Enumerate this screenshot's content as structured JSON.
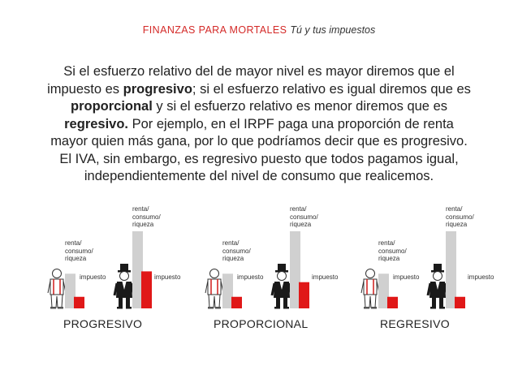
{
  "header": {
    "brand": "FINANZAS PARA MORTALES",
    "subtitle": "Tú y tus impuestos"
  },
  "paragraph": {
    "p1": "Si el esfuerzo relativo del de mayor nivel es mayor diremos que el impuesto es ",
    "b1": "progresivo",
    "p2": "; si el esfuerzo relativo es igual diremos que es ",
    "b2": "proporcional",
    "p3": " y si el esfuerzo relativo es menor diremos que es ",
    "b3": "regresivo.",
    "p4": " Por ejemplo, en el IRPF paga una proporción de renta mayor quien más gana, por lo que podríamos decir que es progresivo. El IVA, sin embargo, es regresivo puesto que todos pagamos igual, independientemente del nivel de consumo que realicemos."
  },
  "labels": {
    "base": "renta/\nconsumo/\nriqueza",
    "tax": "impuesto"
  },
  "colors": {
    "accent": "#d42a28",
    "bar_gray": "#d0d0d0",
    "bar_red": "#e01818"
  },
  "panels": [
    {
      "caption": "PROGRESIVO",
      "low_base": 0.45,
      "low_tax": 0.15,
      "high_base": 1.0,
      "high_tax": 0.48
    },
    {
      "caption": "PROPORCIONAL",
      "low_base": 0.45,
      "low_tax": 0.15,
      "high_base": 1.0,
      "high_tax": 0.34
    },
    {
      "caption": "REGRESIVO",
      "low_base": 0.45,
      "low_tax": 0.15,
      "high_base": 1.0,
      "high_tax": 0.15
    }
  ]
}
